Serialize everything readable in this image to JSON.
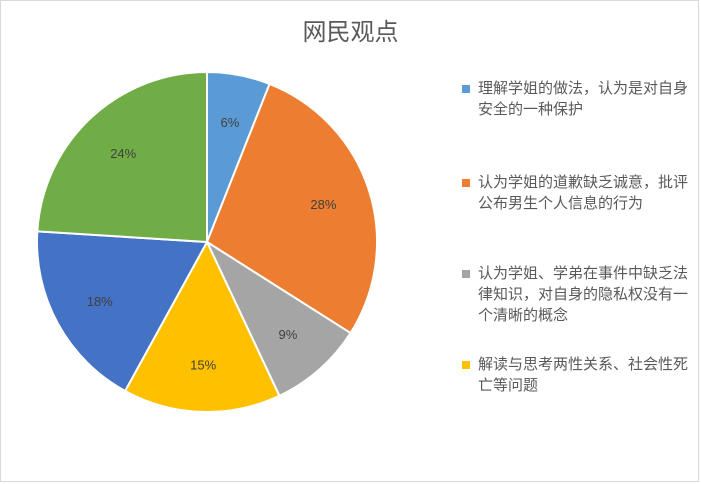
{
  "chart_data": {
    "type": "pie",
    "title": "网民观点",
    "slices": [
      {
        "label": "理解学姐的做法，认为是对自身安全的一种保护",
        "value": 6,
        "display": "6%",
        "color": "#5b9bd5",
        "in_legend": true
      },
      {
        "label": "认为学姐的道歉缺乏诚意，批评公布男生个人信息的行为",
        "value": 28,
        "display": "28%",
        "color": "#ed7d31",
        "in_legend": true
      },
      {
        "label": "认为学姐、学弟在事件中缺乏法律知识，对自身的隐私权没有一个清晰的概念",
        "value": 9,
        "display": "9%",
        "color": "#a5a5a5",
        "in_legend": true
      },
      {
        "label": "解读与思考两性关系、社会性死亡等问题",
        "value": 15,
        "display": "15%",
        "color": "#ffc000",
        "in_legend": true
      },
      {
        "label": "",
        "value": 18,
        "display": "18%",
        "color": "#4472c4",
        "in_legend": false
      },
      {
        "label": "",
        "value": 24,
        "display": "24%",
        "color": "#70ad47",
        "in_legend": false
      }
    ],
    "legend_position": "right"
  }
}
